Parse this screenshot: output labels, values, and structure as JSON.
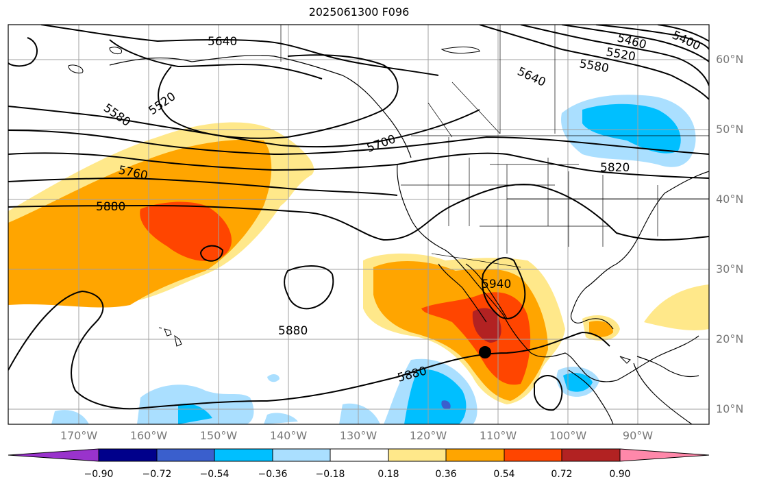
{
  "title": "2025061300 F096",
  "map": {
    "longitude_labels": [
      "170°W",
      "160°W",
      "150°W",
      "140°W",
      "130°W",
      "120°W",
      "110°W",
      "100°W",
      "90°W"
    ],
    "latitude_labels": [
      "60°N",
      "50°N",
      "40°N",
      "30°N",
      "20°N",
      "10°N"
    ],
    "contour_labels": [
      "5640",
      "5520",
      "5580",
      "5700",
      "5760",
      "5880",
      "5460",
      "5400",
      "5520",
      "5580",
      "5640",
      "5820",
      "5940",
      "5880",
      "5880"
    ],
    "marker": "black-dot"
  },
  "colorbar": {
    "ticks": [
      "−0.90",
      "−0.72",
      "−0.54",
      "−0.36",
      "−0.18",
      "0.18",
      "0.36",
      "0.54",
      "0.72",
      "0.90"
    ],
    "colors": [
      "#9933cc",
      "#00008b",
      "#3a5fcd",
      "#00bfff",
      "#aadfff",
      "#ffffff",
      "#ffe88a",
      "#ffa500",
      "#ff4500",
      "#b22222",
      "#ff88aa"
    ]
  }
}
